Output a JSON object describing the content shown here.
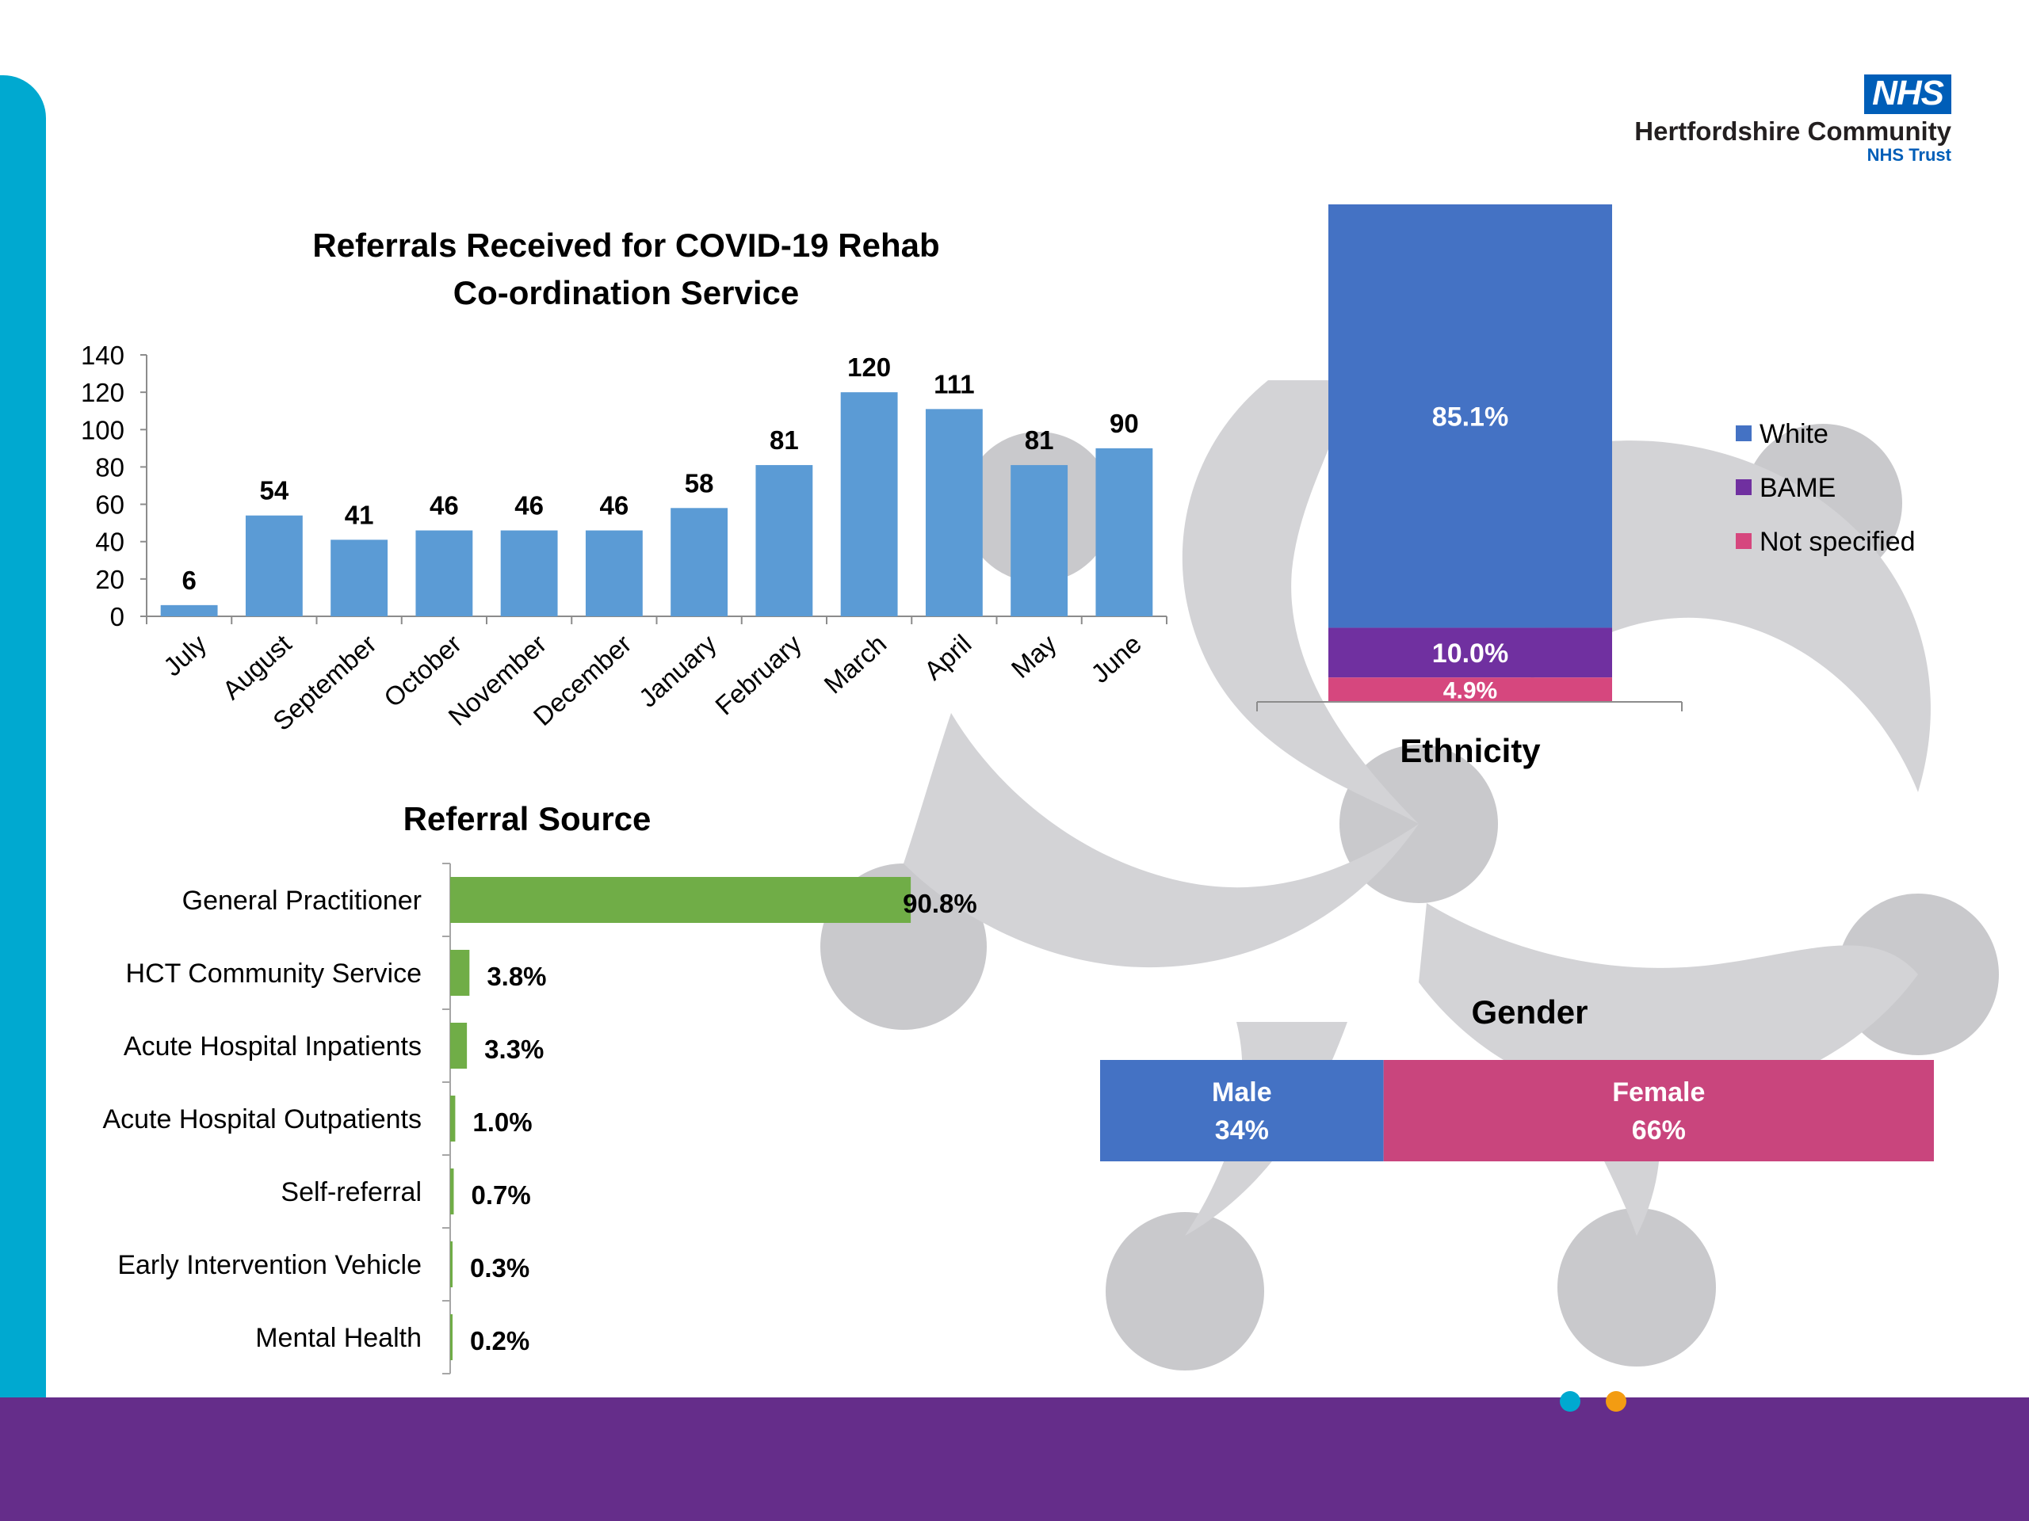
{
  "branding": {
    "logo_mark": "NHS",
    "organisation": "Hertfordshire Community",
    "trust": "NHS Trust",
    "accent_color": "#00a9d0",
    "band_color": "#652d8a"
  },
  "chart_data": [
    {
      "type": "bar",
      "title": "Referrals Received for COVID-19 Rehab Co-ordination Service",
      "title_lines": [
        "Referrals Received for COVID-19 Rehab",
        "Co-ordination Service"
      ],
      "categories": [
        "July",
        "August",
        "September",
        "October",
        "November",
        "December",
        "January",
        "February",
        "March",
        "April",
        "May",
        "June"
      ],
      "values": [
        6,
        54,
        41,
        46,
        46,
        46,
        58,
        81,
        120,
        111,
        81,
        90
      ],
      "ylim": [
        0,
        140
      ],
      "yticks": [
        0,
        20,
        40,
        60,
        80,
        100,
        120,
        140
      ],
      "color": "#5b9bd5",
      "grid": false,
      "legend": "none"
    },
    {
      "type": "bar",
      "orientation": "horizontal",
      "title": "Referral Source",
      "categories": [
        "General Practitioner",
        "HCT Community Service",
        "Acute Hospital Inpatients",
        "Acute Hospital Outpatients",
        "Self-referral",
        "Early Intervention Vehicle",
        "Mental Health"
      ],
      "values": [
        90.8,
        3.8,
        3.3,
        1.0,
        0.7,
        0.3,
        0.2
      ],
      "labels": [
        "90.8%",
        "3.8%",
        "3.3%",
        "1.0%",
        "0.7%",
        "0.3%",
        "0.2%"
      ],
      "unit": "%",
      "color": "#70ad47",
      "grid": false,
      "legend": "none"
    },
    {
      "type": "bar",
      "stacked": true,
      "title": "Ethnicity",
      "series": [
        {
          "name": "White",
          "value": 85.1,
          "label": "85.1%",
          "color": "#4472c4"
        },
        {
          "name": "BAME",
          "value": 10.0,
          "label": "10.0%",
          "color": "#7030a0"
        },
        {
          "name": "Not specified",
          "value": 4.9,
          "label": "4.9%",
          "color": "#d6477e"
        }
      ],
      "legend": "right"
    },
    {
      "type": "bar",
      "stacked": true,
      "orientation": "horizontal",
      "title": "Gender",
      "series": [
        {
          "name": "Male",
          "value": 34,
          "label": "34%",
          "color": "#4472c4"
        },
        {
          "name": "Female",
          "value": 66,
          "label": "66%",
          "color": "#c9457d"
        }
      ],
      "legend": "none"
    }
  ]
}
